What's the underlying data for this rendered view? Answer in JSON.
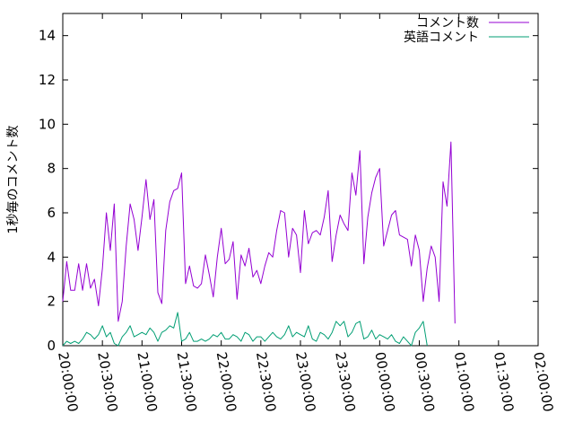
{
  "chart_data": {
    "type": "line",
    "title": "",
    "xlabel": "",
    "ylabel": "1秒毎のコメント数",
    "ylim": [
      0,
      15
    ],
    "xlim": [
      "20:00:00",
      "02:00:00"
    ],
    "x_ticks": [
      "20:00:00",
      "20:30:00",
      "21:00:00",
      "21:30:00",
      "22:00:00",
      "22:30:00",
      "23:00:00",
      "23:30:00",
      "00:00:00",
      "00:30:00",
      "01:00:00",
      "01:30:00",
      "02:00:00"
    ],
    "y_ticks": [
      "0",
      "2",
      "4",
      "6",
      "8",
      "10",
      "12",
      "14"
    ],
    "grid": false,
    "legend_position": "top-right",
    "series": [
      {
        "name": "コメント数",
        "color": "#9400d3",
        "points": [
          [
            "20:00:00",
            2.0
          ],
          [
            "20:03:00",
            3.8
          ],
          [
            "20:06:00",
            2.5
          ],
          [
            "20:09:00",
            2.5
          ],
          [
            "20:12:00",
            3.7
          ],
          [
            "20:15:00",
            2.5
          ],
          [
            "20:18:00",
            3.7
          ],
          [
            "20:21:00",
            2.6
          ],
          [
            "20:24:00",
            3.0
          ],
          [
            "20:27:00",
            1.8
          ],
          [
            "20:30:00",
            3.5
          ],
          [
            "20:33:00",
            6.0
          ],
          [
            "20:36:00",
            4.3
          ],
          [
            "20:39:00",
            6.4
          ],
          [
            "20:42:00",
            1.1
          ],
          [
            "20:45:00",
            2.0
          ],
          [
            "20:48:00",
            4.5
          ],
          [
            "20:51:00",
            6.4
          ],
          [
            "20:54:00",
            5.7
          ],
          [
            "20:57:00",
            4.3
          ],
          [
            "21:00:00",
            5.8
          ],
          [
            "21:03:00",
            7.5
          ],
          [
            "21:06:00",
            5.7
          ],
          [
            "21:09:00",
            6.6
          ],
          [
            "21:12:00",
            2.4
          ],
          [
            "21:15:00",
            1.9
          ],
          [
            "21:18:00",
            5.2
          ],
          [
            "21:21:00",
            6.5
          ],
          [
            "21:24:00",
            7.0
          ],
          [
            "21:27:00",
            7.1
          ],
          [
            "21:30:00",
            7.8
          ],
          [
            "21:33:00",
            2.8
          ],
          [
            "21:36:00",
            3.6
          ],
          [
            "21:39:00",
            2.7
          ],
          [
            "21:42:00",
            2.6
          ],
          [
            "21:45:00",
            2.8
          ],
          [
            "21:48:00",
            4.1
          ],
          [
            "21:51:00",
            3.2
          ],
          [
            "21:54:00",
            2.2
          ],
          [
            "21:57:00",
            4.0
          ],
          [
            "22:00:00",
            5.3
          ],
          [
            "22:03:00",
            3.7
          ],
          [
            "22:06:00",
            3.9
          ],
          [
            "22:09:00",
            4.7
          ],
          [
            "22:12:00",
            2.1
          ],
          [
            "22:15:00",
            4.1
          ],
          [
            "22:18:00",
            3.6
          ],
          [
            "22:21:00",
            4.4
          ],
          [
            "22:24:00",
            3.1
          ],
          [
            "22:27:00",
            3.4
          ],
          [
            "22:30:00",
            2.8
          ],
          [
            "22:33:00",
            3.6
          ],
          [
            "22:36:00",
            4.2
          ],
          [
            "22:39:00",
            4.0
          ],
          [
            "22:42:00",
            5.2
          ],
          [
            "22:45:00",
            6.1
          ],
          [
            "22:48:00",
            6.0
          ],
          [
            "22:51:00",
            4.0
          ],
          [
            "22:54:00",
            5.3
          ],
          [
            "22:57:00",
            5.0
          ],
          [
            "23:00:00",
            3.3
          ],
          [
            "23:03:00",
            6.1
          ],
          [
            "23:06:00",
            4.6
          ],
          [
            "23:09:00",
            5.1
          ],
          [
            "23:12:00",
            5.2
          ],
          [
            "23:15:00",
            5.0
          ],
          [
            "23:18:00",
            5.8
          ],
          [
            "23:21:00",
            7.0
          ],
          [
            "23:24:00",
            3.8
          ],
          [
            "23:27:00",
            5.0
          ],
          [
            "23:30:00",
            5.9
          ],
          [
            "23:33:00",
            5.5
          ],
          [
            "23:36:00",
            5.2
          ],
          [
            "23:39:00",
            7.8
          ],
          [
            "23:42:00",
            6.8
          ],
          [
            "23:45:00",
            8.8
          ],
          [
            "23:48:00",
            3.7
          ],
          [
            "23:51:00",
            5.8
          ],
          [
            "23:54:00",
            6.9
          ],
          [
            "23:57:00",
            7.6
          ],
          [
            "00:00:00",
            8.0
          ],
          [
            "00:03:00",
            4.5
          ],
          [
            "00:06:00",
            5.2
          ],
          [
            "00:09:00",
            5.9
          ],
          [
            "00:12:00",
            6.1
          ],
          [
            "00:15:00",
            5.0
          ],
          [
            "00:18:00",
            4.9
          ],
          [
            "00:21:00",
            4.8
          ],
          [
            "00:24:00",
            3.6
          ],
          [
            "00:27:00",
            5.0
          ],
          [
            "00:30:00",
            4.3
          ],
          [
            "00:33:00",
            2.0
          ],
          [
            "00:36:00",
            3.5
          ],
          [
            "00:39:00",
            4.5
          ],
          [
            "00:42:00",
            4.0
          ],
          [
            "00:45:00",
            2.0
          ],
          [
            "00:48:00",
            7.4
          ],
          [
            "00:51:00",
            6.3
          ],
          [
            "00:54:00",
            9.2
          ],
          [
            "00:57:00",
            1.0
          ]
        ]
      },
      {
        "name": "英語コメント",
        "color": "#009e73",
        "points": [
          [
            "20:00:00",
            0.0
          ],
          [
            "20:03:00",
            0.2
          ],
          [
            "20:06:00",
            0.1
          ],
          [
            "20:09:00",
            0.2
          ],
          [
            "20:12:00",
            0.1
          ],
          [
            "20:15:00",
            0.3
          ],
          [
            "20:18:00",
            0.6
          ],
          [
            "20:21:00",
            0.5
          ],
          [
            "20:24:00",
            0.3
          ],
          [
            "20:27:00",
            0.5
          ],
          [
            "20:30:00",
            0.9
          ],
          [
            "20:33:00",
            0.4
          ],
          [
            "20:36:00",
            0.6
          ],
          [
            "20:39:00",
            0.1
          ],
          [
            "20:42:00",
            0.0
          ],
          [
            "20:45:00",
            0.4
          ],
          [
            "20:48:00",
            0.6
          ],
          [
            "20:51:00",
            0.9
          ],
          [
            "20:54:00",
            0.4
          ],
          [
            "20:57:00",
            0.5
          ],
          [
            "21:00:00",
            0.6
          ],
          [
            "21:03:00",
            0.5
          ],
          [
            "21:06:00",
            0.8
          ],
          [
            "21:09:00",
            0.6
          ],
          [
            "21:12:00",
            0.2
          ],
          [
            "21:15:00",
            0.6
          ],
          [
            "21:18:00",
            0.7
          ],
          [
            "21:21:00",
            0.9
          ],
          [
            "21:24:00",
            0.8
          ],
          [
            "21:27:00",
            1.5
          ],
          [
            "21:30:00",
            0.2
          ],
          [
            "21:33:00",
            0.3
          ],
          [
            "21:36:00",
            0.6
          ],
          [
            "21:39:00",
            0.2
          ],
          [
            "21:42:00",
            0.2
          ],
          [
            "21:45:00",
            0.3
          ],
          [
            "21:48:00",
            0.2
          ],
          [
            "21:51:00",
            0.3
          ],
          [
            "21:54:00",
            0.5
          ],
          [
            "21:57:00",
            0.4
          ],
          [
            "22:00:00",
            0.6
          ],
          [
            "22:03:00",
            0.3
          ],
          [
            "22:06:00",
            0.3
          ],
          [
            "22:09:00",
            0.5
          ],
          [
            "22:12:00",
            0.4
          ],
          [
            "22:15:00",
            0.2
          ],
          [
            "22:18:00",
            0.6
          ],
          [
            "22:21:00",
            0.5
          ],
          [
            "22:24:00",
            0.2
          ],
          [
            "22:27:00",
            0.4
          ],
          [
            "22:30:00",
            0.4
          ],
          [
            "22:33:00",
            0.2
          ],
          [
            "22:36:00",
            0.4
          ],
          [
            "22:39:00",
            0.6
          ],
          [
            "22:42:00",
            0.4
          ],
          [
            "22:45:00",
            0.3
          ],
          [
            "22:48:00",
            0.5
          ],
          [
            "22:51:00",
            0.9
          ],
          [
            "22:54:00",
            0.4
          ],
          [
            "22:57:00",
            0.6
          ],
          [
            "23:00:00",
            0.5
          ],
          [
            "23:03:00",
            0.4
          ],
          [
            "23:06:00",
            0.9
          ],
          [
            "23:09:00",
            0.3
          ],
          [
            "23:12:00",
            0.2
          ],
          [
            "23:15:00",
            0.6
          ],
          [
            "23:18:00",
            0.5
          ],
          [
            "23:21:00",
            0.3
          ],
          [
            "23:24:00",
            0.6
          ],
          [
            "23:27:00",
            1.1
          ],
          [
            "23:30:00",
            0.9
          ],
          [
            "23:33:00",
            1.1
          ],
          [
            "23:36:00",
            0.4
          ],
          [
            "23:39:00",
            0.6
          ],
          [
            "23:42:00",
            1.0
          ],
          [
            "23:45:00",
            1.1
          ],
          [
            "23:48:00",
            0.3
          ],
          [
            "23:51:00",
            0.4
          ],
          [
            "23:54:00",
            0.7
          ],
          [
            "23:57:00",
            0.3
          ],
          [
            "00:00:00",
            0.5
          ],
          [
            "00:03:00",
            0.4
          ],
          [
            "00:06:00",
            0.3
          ],
          [
            "00:09:00",
            0.5
          ],
          [
            "00:12:00",
            0.2
          ],
          [
            "00:15:00",
            0.1
          ],
          [
            "00:18:00",
            0.4
          ],
          [
            "00:21:00",
            0.2
          ],
          [
            "00:24:00",
            0.0
          ],
          [
            "00:27:00",
            0.6
          ],
          [
            "00:30:00",
            0.8
          ],
          [
            "00:33:00",
            1.1
          ],
          [
            "00:36:00",
            0.0
          ]
        ]
      }
    ]
  }
}
